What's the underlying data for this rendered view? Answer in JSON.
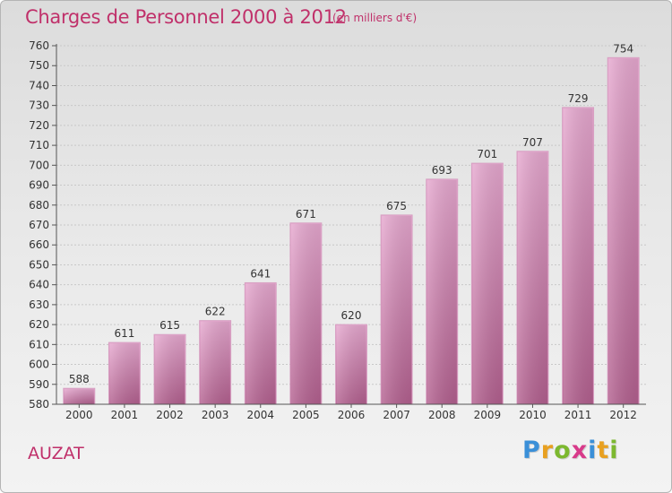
{
  "header": {
    "title": "Charges de Personnel 2000 à 2012",
    "subtitle": "(en milliers d'€)"
  },
  "footer": {
    "commune": "AUZAT",
    "logo_text": "Proxiti",
    "logo_letters": [
      {
        "ch": "P",
        "color": "#3a8fd8"
      },
      {
        "ch": "r",
        "color": "#e8a020"
      },
      {
        "ch": "o",
        "color": "#7cb82f"
      },
      {
        "ch": "x",
        "color": "#d83a8a"
      },
      {
        "ch": "i",
        "color": "#3a8fd8"
      },
      {
        "ch": "t",
        "color": "#e8a020"
      },
      {
        "ch": "i",
        "color": "#7cb82f"
      }
    ]
  },
  "colors": {
    "bar_top": "#e6a8cf",
    "bar_bottom": "#b3608f",
    "title": "#c0306a"
  },
  "chart_data": {
    "type": "bar",
    "categories": [
      "2000",
      "2001",
      "2002",
      "2003",
      "2004",
      "2005",
      "2006",
      "2007",
      "2008",
      "2009",
      "2010",
      "2011",
      "2012"
    ],
    "values": [
      588,
      611,
      615,
      622,
      641,
      671,
      620,
      675,
      693,
      701,
      707,
      729,
      754
    ],
    "ylim": [
      580,
      760
    ],
    "ytick_step": 10,
    "grid": true
  }
}
